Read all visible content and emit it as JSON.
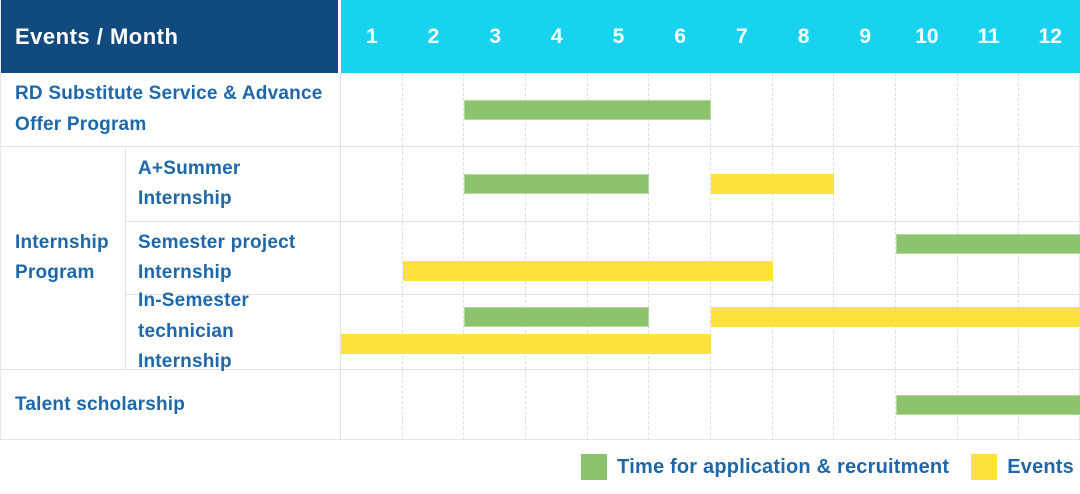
{
  "header": {
    "corner_label": "Events / Month",
    "months": [
      "1",
      "2",
      "3",
      "4",
      "5",
      "6",
      "7",
      "8",
      "9",
      "10",
      "11",
      "12"
    ]
  },
  "colors": {
    "header_bg": "#114a7e",
    "months_bg": "#17d3f0",
    "application_bar": "#8cc46d",
    "events_bar": "#ffe33c",
    "label_text": "#1e67a9",
    "grid_line": "#dedede"
  },
  "chart_data": {
    "type": "gantt",
    "x_axis": {
      "label": "Month",
      "ticks": [
        1,
        2,
        3,
        4,
        5,
        6,
        7,
        8,
        9,
        10,
        11,
        12
      ],
      "range": [
        1,
        12
      ]
    },
    "grid": "dashed-vertical-per-month",
    "legend_position": "bottom-right",
    "bar_kinds": {
      "application": "Time for application & recruitment",
      "events": "Events"
    },
    "rows": [
      {
        "label": "RD Substitute Service & Advance Offer Program",
        "group": null,
        "bars": [
          {
            "kind": "application",
            "start": 3,
            "end": 6,
            "lane": "single"
          }
        ]
      },
      {
        "label": "A+Summer Internship",
        "group": "Internship Program",
        "bars": [
          {
            "kind": "application",
            "start": 3,
            "end": 5,
            "lane": "single"
          },
          {
            "kind": "events",
            "start": 7,
            "end": 8,
            "lane": "single"
          }
        ]
      },
      {
        "label": "Semester project Internship",
        "group": "Internship Program",
        "bars": [
          {
            "kind": "application",
            "start": 10,
            "end": 12,
            "lane": "upper"
          },
          {
            "kind": "events",
            "start": 2,
            "end": 7,
            "lane": "lower"
          }
        ]
      },
      {
        "label": "In-Semester technician Internship",
        "group": "Internship Program",
        "bars": [
          {
            "kind": "application",
            "start": 3,
            "end": 5,
            "lane": "upper"
          },
          {
            "kind": "events",
            "start": 7,
            "end": 12,
            "lane": "upper"
          },
          {
            "kind": "events",
            "start": 1,
            "end": 6,
            "lane": "lower"
          }
        ]
      },
      {
        "label": "Talent scholarship",
        "group": null,
        "bars": [
          {
            "kind": "application",
            "start": 10,
            "end": 12,
            "lane": "single"
          }
        ]
      }
    ]
  },
  "legend": {
    "items": [
      {
        "swatch": "application",
        "label": "Time for application & recruitment"
      },
      {
        "swatch": "events",
        "label": "Events"
      }
    ]
  }
}
